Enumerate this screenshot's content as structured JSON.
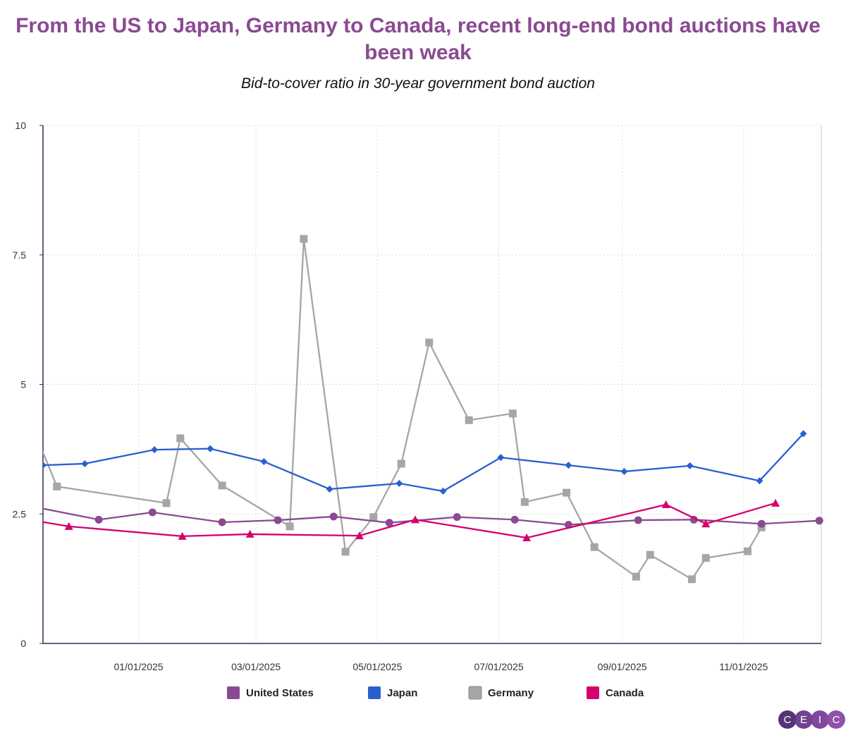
{
  "title": "From the US to Japan, Germany to Canada, recent long-end bond auctions have been weak",
  "subtitle": "Bid-to-cover ratio in 30-year government bond auction",
  "logo_text": "CEIC",
  "chart_data": {
    "type": "line",
    "title": "From the US to Japan, Germany to Canada, recent long-end bond auctions have been weak",
    "subtitle": "Bid-to-cover ratio in 30-year government bond auction",
    "xlim": [
      "2024-11-14",
      "2025-12-10"
    ],
    "ylim": [
      0,
      10
    ],
    "yticks": [
      0,
      2.5,
      5,
      7.5,
      10
    ],
    "ytick_labels": [
      "0",
      "2.5",
      "5",
      "7.5",
      "10"
    ],
    "xticks": [
      "2025-01-01",
      "2025-03-01",
      "2025-05-01",
      "2025-07-01",
      "2025-09-01",
      "2025-11-01"
    ],
    "xtick_labels": [
      "01/01/2025",
      "03/01/2025",
      "05/01/2025",
      "07/01/2025",
      "09/01/2025",
      "11/01/2025"
    ],
    "grid": true,
    "legend_position": "bottom",
    "series": [
      {
        "name": "United States",
        "color": "#8a4a91",
        "marker": "circle",
        "points": [
          [
            "2024-11-13",
            2.61
          ],
          [
            "2024-12-12",
            2.39
          ],
          [
            "2025-01-08",
            2.53
          ],
          [
            "2025-02-12",
            2.34
          ],
          [
            "2025-03-12",
            2.38
          ],
          [
            "2025-04-09",
            2.45
          ],
          [
            "2025-05-07",
            2.33
          ],
          [
            "2025-06-10",
            2.44
          ],
          [
            "2025-07-09",
            2.39
          ],
          [
            "2025-08-05",
            2.29
          ],
          [
            "2025-09-09",
            2.38
          ],
          [
            "2025-10-07",
            2.39
          ],
          [
            "2025-11-10",
            2.31
          ],
          [
            "2025-12-09",
            2.37
          ]
        ]
      },
      {
        "name": "Japan",
        "color": "#2b5fd0",
        "marker": "diamond",
        "points": [
          [
            "2024-11-14",
            3.44
          ],
          [
            "2024-12-05",
            3.47
          ],
          [
            "2025-01-09",
            3.74
          ],
          [
            "2025-02-06",
            3.76
          ],
          [
            "2025-03-05",
            3.51
          ],
          [
            "2025-04-07",
            2.98
          ],
          [
            "2025-05-12",
            3.09
          ],
          [
            "2025-06-03",
            2.94
          ],
          [
            "2025-07-02",
            3.59
          ],
          [
            "2025-08-05",
            3.44
          ],
          [
            "2025-09-02",
            3.32
          ],
          [
            "2025-10-05",
            3.43
          ],
          [
            "2025-11-09",
            3.14
          ],
          [
            "2025-12-01",
            4.05
          ]
        ]
      },
      {
        "name": "Germany",
        "color": "#a6a6a6",
        "marker": "square",
        "points": [
          [
            "2024-11-13",
            3.78
          ],
          [
            "2024-11-21",
            3.03
          ],
          [
            "2025-01-15",
            2.71
          ],
          [
            "2025-01-22",
            3.96
          ],
          [
            "2025-02-12",
            3.05
          ],
          [
            "2025-03-18",
            2.26
          ],
          [
            "2025-03-25",
            7.81
          ],
          [
            "2025-04-15",
            1.77
          ],
          [
            "2025-04-29",
            2.44
          ],
          [
            "2025-05-13",
            3.47
          ],
          [
            "2025-05-27",
            5.81
          ],
          [
            "2025-06-16",
            4.31
          ],
          [
            "2025-07-08",
            4.44
          ],
          [
            "2025-07-14",
            2.73
          ],
          [
            "2025-08-04",
            2.91
          ],
          [
            "2025-08-18",
            1.86
          ],
          [
            "2025-09-08",
            1.29
          ],
          [
            "2025-09-15",
            1.71
          ],
          [
            "2025-10-06",
            1.24
          ],
          [
            "2025-10-13",
            1.65
          ],
          [
            "2025-11-03",
            1.78
          ],
          [
            "2025-11-10",
            2.24
          ]
        ]
      },
      {
        "name": "Canada",
        "color": "#d6006e",
        "marker": "triangle",
        "points": [
          [
            "2024-11-13",
            2.35
          ],
          [
            "2024-11-27",
            2.26
          ],
          [
            "2025-01-23",
            2.07
          ],
          [
            "2025-02-26",
            2.11
          ],
          [
            "2025-04-22",
            2.08
          ],
          [
            "2025-05-20",
            2.39
          ],
          [
            "2025-07-15",
            2.04
          ],
          [
            "2025-09-23",
            2.68
          ],
          [
            "2025-10-13",
            2.31
          ],
          [
            "2025-11-17",
            2.71
          ]
        ]
      }
    ]
  }
}
